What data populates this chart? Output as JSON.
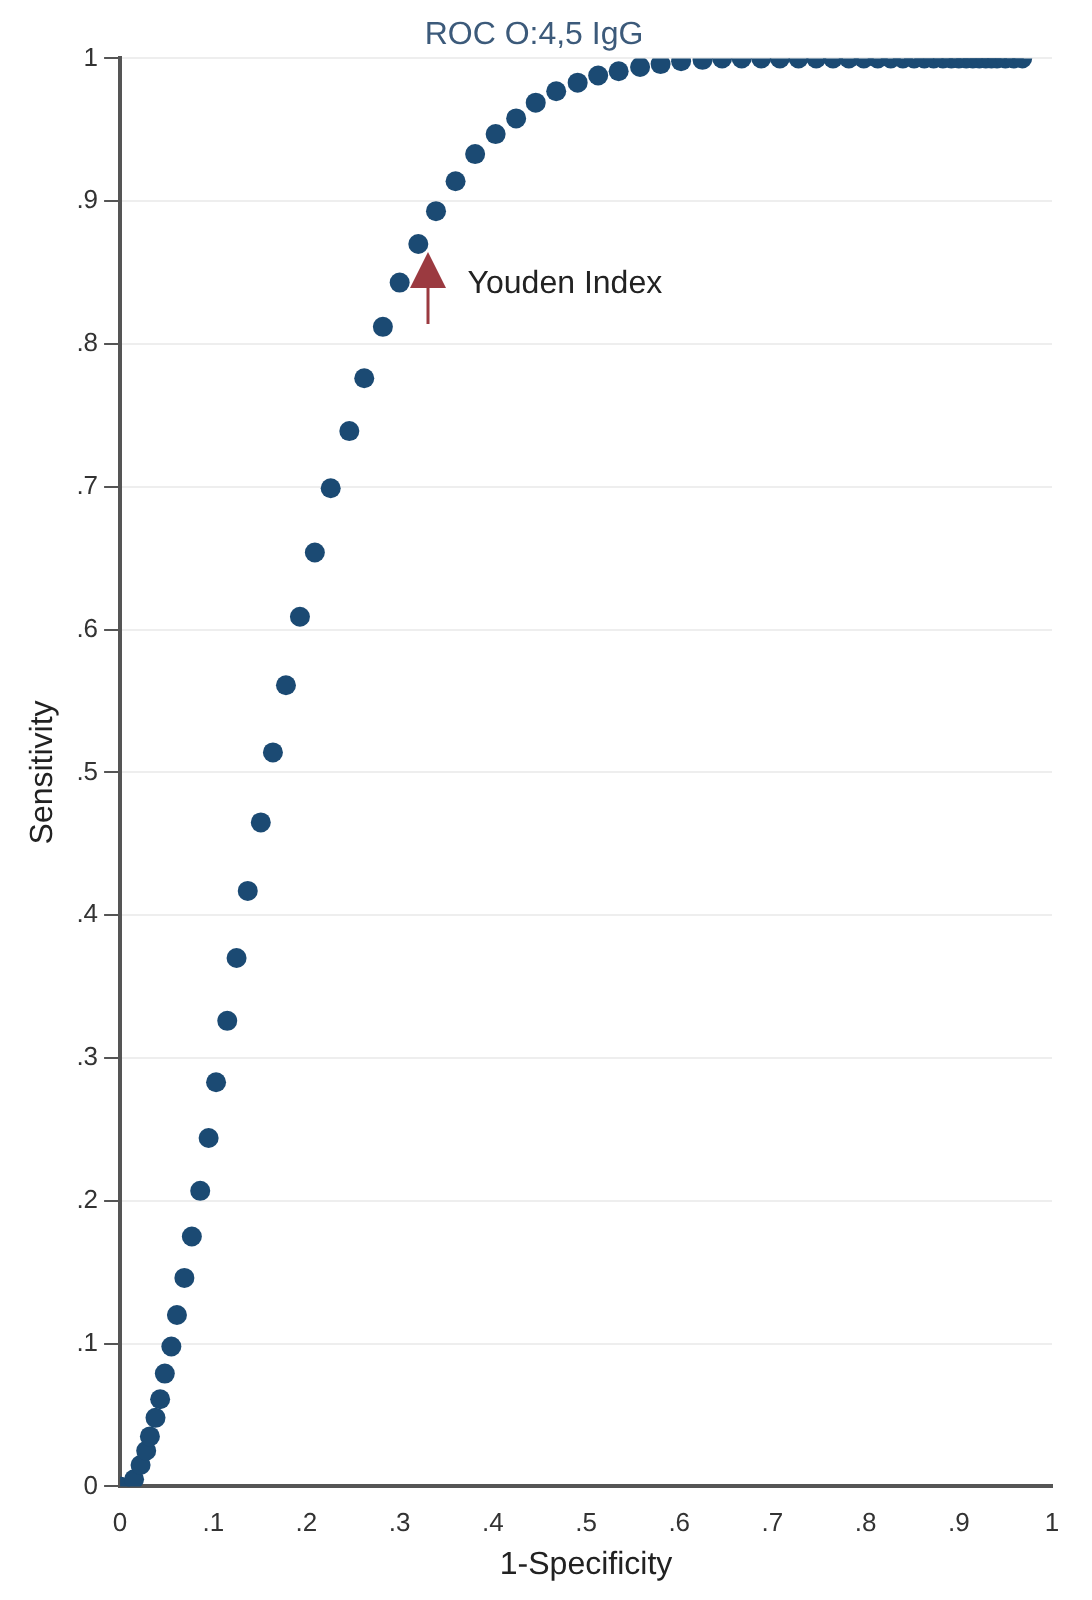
{
  "chart_data": {
    "type": "scatter",
    "title": "ROC O:4,5 IgG",
    "xlabel": "1-Specificity",
    "ylabel": "Sensitivity",
    "x": [
      0,
      0.015,
      0.022,
      0.028,
      0.032,
      0.038,
      0.043,
      0.048,
      0.055,
      0.061,
      0.069,
      0.077,
      0.086,
      0.095,
      0.103,
      0.115,
      0.125,
      0.137,
      0.151,
      0.164,
      0.178,
      0.193,
      0.209,
      0.226,
      0.246,
      0.262,
      0.282,
      0.3,
      0.32,
      0.339,
      0.36,
      0.381,
      0.403,
      0.425,
      0.446,
      0.468,
      0.491,
      0.513,
      0.535,
      0.558,
      0.58,
      0.602,
      0.625,
      0.646,
      0.667,
      0.688,
      0.708,
      0.728,
      0.747,
      0.765,
      0.782,
      0.798,
      0.813,
      0.827,
      0.84,
      0.852,
      0.863,
      0.873,
      0.883,
      0.892,
      0.9,
      0.908,
      0.915,
      0.922,
      0.929,
      0.935,
      0.941,
      0.95,
      0.959,
      0.968
    ],
    "series": [
      {
        "color": "#1b4a73",
        "values": [
          0,
          0.005,
          0.015,
          0.025,
          0.035,
          0.048,
          0.061,
          0.079,
          0.098,
          0.12,
          0.146,
          0.175,
          0.207,
          0.244,
          0.283,
          0.326,
          0.37,
          0.417,
          0.465,
          0.514,
          0.561,
          0.609,
          0.654,
          0.699,
          0.739,
          0.776,
          0.812,
          0.843,
          0.87,
          0.893,
          0.914,
          0.933,
          0.947,
          0.958,
          0.969,
          0.977,
          0.983,
          0.988,
          0.991,
          0.994,
          0.996,
          0.998,
          0.999,
          1,
          1,
          1,
          1,
          1,
          1,
          1,
          1,
          1,
          1,
          1,
          1,
          1,
          1,
          1,
          1,
          1,
          1,
          1,
          1,
          1,
          1,
          1,
          1,
          1,
          1,
          1
        ]
      }
    ],
    "xlim": [
      0,
      1
    ],
    "ylim": [
      0,
      1
    ],
    "xticks": [
      0,
      {
        "value": 0.1,
        "label": ".1"
      },
      {
        "value": 0.2,
        "label": ".2"
      },
      {
        "value": 0.3,
        "label": ".3"
      },
      {
        "value": 0.4,
        "label": ".4"
      },
      {
        "value": 0.5,
        "label": ".5"
      },
      {
        "value": 0.6,
        "label": ".6"
      },
      {
        "value": 0.7,
        "label": ".7"
      },
      {
        "value": 0.8,
        "label": ".8"
      },
      {
        "value": 0.9,
        "label": ".9"
      },
      1
    ],
    "yticks": [
      0,
      {
        "value": 0.1,
        "label": ".1"
      },
      {
        "value": 0.2,
        "label": ".2"
      },
      {
        "value": 0.3,
        "label": ".3"
      },
      {
        "value": 0.4,
        "label": ".4"
      },
      {
        "value": 0.5,
        "label": ".5"
      },
      {
        "value": 0.6,
        "label": ".6"
      },
      {
        "value": 0.7,
        "label": ".7"
      },
      {
        "value": 0.8,
        "label": ".8"
      },
      {
        "value": 0.9,
        "label": ".9"
      },
      1
    ],
    "grid": "y",
    "marker": "circle",
    "legend": false,
    "annotations": [
      {
        "text": "Youden Index",
        "x": 0.33,
        "y": 0.864
      }
    ]
  }
}
